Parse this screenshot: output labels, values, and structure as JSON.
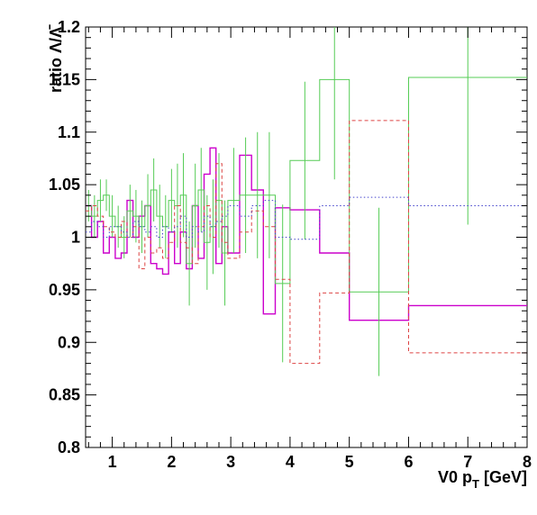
{
  "chart_data": {
    "type": "line",
    "title": "",
    "xlabel": "V0 p_T [GeV]",
    "ylabel": "ratio Λ/Λ̄",
    "xlim": [
      0.55,
      8.0
    ],
    "ylim": [
      0.8,
      1.2
    ],
    "x_ticks": [
      "1",
      "2",
      "3",
      "4",
      "5",
      "6",
      "7",
      "8"
    ],
    "y_ticks": [
      "0.8",
      "0.85",
      "0.9",
      "0.95",
      "1",
      "1.05",
      "1.1",
      "1.15",
      "1.2"
    ],
    "grid": false,
    "legend": "none",
    "series": [
      {
        "style": "solid",
        "color": "#cc00cc",
        "bins": [
          {
            "x0": 0.55,
            "x1": 0.65,
            "y": 1.03
          },
          {
            "x0": 0.65,
            "x1": 0.75,
            "y": 1.0
          },
          {
            "x0": 0.75,
            "x1": 0.85,
            "y": 1.015
          },
          {
            "x0": 0.85,
            "x1": 0.95,
            "y": 0.985
          },
          {
            "x0": 0.95,
            "x1": 1.05,
            "y": 1.0
          },
          {
            "x0": 1.05,
            "x1": 1.15,
            "y": 0.98
          },
          {
            "x0": 1.15,
            "x1": 1.25,
            "y": 0.985
          },
          {
            "x0": 1.25,
            "x1": 1.35,
            "y": 1.035
          },
          {
            "x0": 1.35,
            "x1": 1.45,
            "y": 1.0
          },
          {
            "x0": 1.45,
            "x1": 1.55,
            "y": 1.02
          },
          {
            "x0": 1.55,
            "x1": 1.65,
            "y": 1.03
          },
          {
            "x0": 1.65,
            "x1": 1.75,
            "y": 0.975
          },
          {
            "x0": 1.75,
            "x1": 1.85,
            "y": 0.97
          },
          {
            "x0": 1.85,
            "x1": 1.95,
            "y": 0.965
          },
          {
            "x0": 1.95,
            "x1": 2.05,
            "y": 1.005
          },
          {
            "x0": 2.05,
            "x1": 2.15,
            "y": 0.975
          },
          {
            "x0": 2.15,
            "x1": 2.25,
            "y": 1.005
          },
          {
            "x0": 2.25,
            "x1": 2.35,
            "y": 0.97
          },
          {
            "x0": 2.35,
            "x1": 2.45,
            "y": 1.03
          },
          {
            "x0": 2.45,
            "x1": 2.55,
            "y": 0.98
          },
          {
            "x0": 2.55,
            "x1": 2.65,
            "y": 1.06
          },
          {
            "x0": 2.65,
            "x1": 2.75,
            "y": 1.085
          },
          {
            "x0": 2.75,
            "x1": 2.85,
            "y": 0.975
          },
          {
            "x0": 2.85,
            "x1": 2.95,
            "y": 1.01
          },
          {
            "x0": 2.95,
            "x1": 3.15,
            "y": 0.985
          },
          {
            "x0": 3.15,
            "x1": 3.35,
            "y": 1.078
          },
          {
            "x0": 3.35,
            "x1": 3.55,
            "y": 1.045
          },
          {
            "x0": 3.55,
            "x1": 3.75,
            "y": 0.927
          },
          {
            "x0": 3.75,
            "x1": 4.0,
            "y": 1.028
          },
          {
            "x0": 4.0,
            "x1": 4.5,
            "y": 1.026
          },
          {
            "x0": 4.5,
            "x1": 5.0,
            "y": 0.985
          },
          {
            "x0": 5.0,
            "x1": 6.0,
            "y": 0.921
          },
          {
            "x0": 6.0,
            "x1": 8.0,
            "y": 0.935
          }
        ]
      },
      {
        "style": "solid",
        "color": "#55cc55",
        "bins": [
          {
            "x0": 0.55,
            "x1": 0.65,
            "y": 1.03,
            "err": 0.015
          },
          {
            "x0": 0.65,
            "x1": 0.75,
            "y": 1.02,
            "err": 0.02
          },
          {
            "x0": 0.75,
            "x1": 0.85,
            "y": 1.035,
            "err": 0.02
          },
          {
            "x0": 0.85,
            "x1": 0.95,
            "y": 1.04,
            "err": 0.015
          },
          {
            "x0": 0.95,
            "x1": 1.05,
            "y": 1.02,
            "err": 0.02
          },
          {
            "x0": 1.05,
            "x1": 1.15,
            "y": 1.01,
            "err": 0.02
          },
          {
            "x0": 1.15,
            "x1": 1.25,
            "y": 1.0,
            "err": 0.02
          },
          {
            "x0": 1.25,
            "x1": 1.35,
            "y": 1.025,
            "err": 0.025
          },
          {
            "x0": 1.35,
            "x1": 1.45,
            "y": 1.02,
            "err": 0.025
          },
          {
            "x0": 1.45,
            "x1": 1.55,
            "y": 1.01,
            "err": 0.025
          },
          {
            "x0": 1.55,
            "x1": 1.65,
            "y": 1.03,
            "err": 0.03
          },
          {
            "x0": 1.65,
            "x1": 1.75,
            "y": 1.045,
            "err": 0.03
          },
          {
            "x0": 1.75,
            "x1": 1.85,
            "y": 1.02,
            "err": 0.03
          },
          {
            "x0": 1.85,
            "x1": 1.95,
            "y": 1.01,
            "err": 0.03
          },
          {
            "x0": 1.95,
            "x1": 2.05,
            "y": 1.035,
            "err": 0.03
          },
          {
            "x0": 2.05,
            "x1": 2.15,
            "y": 1.03,
            "err": 0.04
          },
          {
            "x0": 2.15,
            "x1": 2.25,
            "y": 1.04,
            "err": 0.04
          },
          {
            "x0": 2.25,
            "x1": 2.35,
            "y": 0.975,
            "err": 0.04
          },
          {
            "x0": 2.35,
            "x1": 2.45,
            "y": 1.03,
            "err": 0.04
          },
          {
            "x0": 2.45,
            "x1": 2.55,
            "y": 1.045,
            "err": 0.04
          },
          {
            "x0": 2.55,
            "x1": 2.65,
            "y": 0.995,
            "err": 0.045
          },
          {
            "x0": 2.65,
            "x1": 2.75,
            "y": 1.01,
            "err": 0.045
          },
          {
            "x0": 2.75,
            "x1": 2.85,
            "y": 1.035,
            "err": 0.045
          },
          {
            "x0": 2.85,
            "x1": 2.95,
            "y": 0.985,
            "err": 0.05
          },
          {
            "x0": 2.95,
            "x1": 3.15,
            "y": 1.035,
            "err": 0.05
          },
          {
            "x0": 3.15,
            "x1": 3.35,
            "y": 1.04,
            "err": 0.055
          },
          {
            "x0": 3.35,
            "x1": 3.55,
            "y": 1.04,
            "err": 0.06
          },
          {
            "x0": 3.55,
            "x1": 3.75,
            "y": 1.04,
            "err": 0.06
          },
          {
            "x0": 3.75,
            "x1": 4.0,
            "y": 0.956,
            "err": 0.075
          },
          {
            "x0": 4.0,
            "x1": 4.5,
            "y": 1.073,
            "err": 0.075
          },
          {
            "x0": 4.5,
            "x1": 5.0,
            "y": 1.15,
            "err": 0.095
          },
          {
            "x0": 5.0,
            "x1": 6.0,
            "y": 0.948,
            "err": 0.08
          },
          {
            "x0": 6.0,
            "x1": 8.0,
            "y": 1.152,
            "err": 0.14
          }
        ]
      },
      {
        "style": "dashed",
        "color": "#dd4444",
        "bins": [
          {
            "x0": 0.55,
            "x1": 0.65,
            "y": 1.025
          },
          {
            "x0": 0.65,
            "x1": 0.75,
            "y": 1.03
          },
          {
            "x0": 0.75,
            "x1": 0.85,
            "y": 1.02
          },
          {
            "x0": 0.85,
            "x1": 0.95,
            "y": 1.01
          },
          {
            "x0": 0.95,
            "x1": 1.05,
            "y": 1.005
          },
          {
            "x0": 1.05,
            "x1": 1.15,
            "y": 1.0
          },
          {
            "x0": 1.15,
            "x1": 1.25,
            "y": 1.015
          },
          {
            "x0": 1.25,
            "x1": 1.35,
            "y": 1.0
          },
          {
            "x0": 1.35,
            "x1": 1.45,
            "y": 1.01
          },
          {
            "x0": 1.45,
            "x1": 1.55,
            "y": 0.97
          },
          {
            "x0": 1.55,
            "x1": 1.65,
            "y": 1.0
          },
          {
            "x0": 1.65,
            "x1": 1.75,
            "y": 0.985
          },
          {
            "x0": 1.75,
            "x1": 1.85,
            "y": 0.99
          },
          {
            "x0": 1.85,
            "x1": 1.95,
            "y": 0.98
          },
          {
            "x0": 1.95,
            "x1": 2.05,
            "y": 0.995
          },
          {
            "x0": 2.05,
            "x1": 2.15,
            "y": 1.03
          },
          {
            "x0": 2.15,
            "x1": 2.25,
            "y": 0.995
          },
          {
            "x0": 2.25,
            "x1": 2.35,
            "y": 0.99
          },
          {
            "x0": 2.35,
            "x1": 2.45,
            "y": 0.975
          },
          {
            "x0": 2.45,
            "x1": 2.55,
            "y": 1.01
          },
          {
            "x0": 2.55,
            "x1": 2.65,
            "y": 1.03
          },
          {
            "x0": 2.65,
            "x1": 2.75,
            "y": 1.0
          },
          {
            "x0": 2.75,
            "x1": 2.85,
            "y": 1.07
          },
          {
            "x0": 2.85,
            "x1": 2.95,
            "y": 0.995
          },
          {
            "x0": 2.95,
            "x1": 3.15,
            "y": 0.98
          },
          {
            "x0": 3.15,
            "x1": 3.35,
            "y": 1.005
          },
          {
            "x0": 3.35,
            "x1": 3.55,
            "y": 1.025
          },
          {
            "x0": 3.55,
            "x1": 3.75,
            "y": 1.01
          },
          {
            "x0": 3.75,
            "x1": 4.0,
            "y": 0.96
          },
          {
            "x0": 4.0,
            "x1": 4.5,
            "y": 0.88
          },
          {
            "x0": 4.5,
            "x1": 5.0,
            "y": 0.947
          },
          {
            "x0": 5.0,
            "x1": 6.0,
            "y": 1.111
          },
          {
            "x0": 6.0,
            "x1": 8.0,
            "y": 0.89
          }
        ]
      },
      {
        "style": "dotted",
        "color": "#4444cc",
        "bins": [
          {
            "x0": 0.55,
            "x1": 0.65,
            "y": 1.005
          },
          {
            "x0": 0.65,
            "x1": 0.75,
            "y": 1.015
          },
          {
            "x0": 0.75,
            "x1": 0.85,
            "y": 1.01
          },
          {
            "x0": 0.85,
            "x1": 0.95,
            "y": 1.0
          },
          {
            "x0": 0.95,
            "x1": 1.05,
            "y": 1.01
          },
          {
            "x0": 1.05,
            "x1": 1.15,
            "y": 1.01
          },
          {
            "x0": 1.15,
            "x1": 1.25,
            "y": 1.005
          },
          {
            "x0": 1.25,
            "x1": 1.35,
            "y": 1.0
          },
          {
            "x0": 1.35,
            "x1": 1.45,
            "y": 1.015
          },
          {
            "x0": 1.45,
            "x1": 1.55,
            "y": 1.01
          },
          {
            "x0": 1.55,
            "x1": 1.65,
            "y": 1.005
          },
          {
            "x0": 1.65,
            "x1": 1.75,
            "y": 1.01
          },
          {
            "x0": 1.75,
            "x1": 1.85,
            "y": 1.0
          },
          {
            "x0": 1.85,
            "x1": 1.95,
            "y": 1.01
          },
          {
            "x0": 1.95,
            "x1": 2.05,
            "y": 1.005
          },
          {
            "x0": 2.05,
            "x1": 2.15,
            "y": 1.01
          },
          {
            "x0": 2.15,
            "x1": 2.25,
            "y": 1.02
          },
          {
            "x0": 2.25,
            "x1": 2.35,
            "y": 1.0
          },
          {
            "x0": 2.35,
            "x1": 2.45,
            "y": 1.01
          },
          {
            "x0": 2.45,
            "x1": 2.55,
            "y": 1.005
          },
          {
            "x0": 2.55,
            "x1": 2.65,
            "y": 1.02
          },
          {
            "x0": 2.65,
            "x1": 2.75,
            "y": 1.01
          },
          {
            "x0": 2.75,
            "x1": 2.85,
            "y": 1.015
          },
          {
            "x0": 2.85,
            "x1": 2.95,
            "y": 1.02
          },
          {
            "x0": 2.95,
            "x1": 3.15,
            "y": 1.03
          },
          {
            "x0": 3.15,
            "x1": 3.35,
            "y": 1.02
          },
          {
            "x0": 3.35,
            "x1": 3.55,
            "y": 1.03
          },
          {
            "x0": 3.55,
            "x1": 3.75,
            "y": 1.035
          },
          {
            "x0": 3.75,
            "x1": 4.0,
            "y": 1.0
          },
          {
            "x0": 4.0,
            "x1": 4.5,
            "y": 0.998
          },
          {
            "x0": 4.5,
            "x1": 5.0,
            "y": 1.03
          },
          {
            "x0": 5.0,
            "x1": 6.0,
            "y": 1.038
          },
          {
            "x0": 6.0,
            "x1": 8.0,
            "y": 1.03
          }
        ]
      }
    ]
  }
}
